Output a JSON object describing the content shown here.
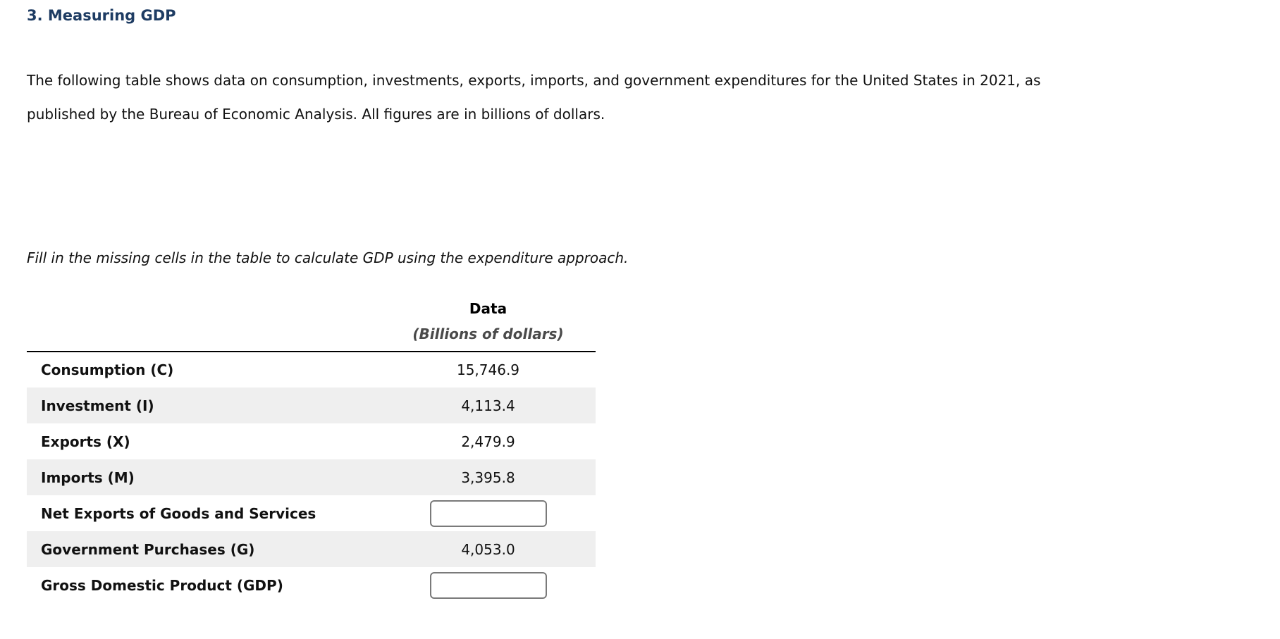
{
  "page": {
    "title": "3. Measuring GDP",
    "intro": "The following table shows data on consumption, investments, exports, imports, and government expenditures for the United States in 2021, as published by the Bureau of Economic Analysis. All figures are in billions of dollars.",
    "instruction": "Fill in the missing cells in the table to calculate GDP using the expenditure approach."
  },
  "table": {
    "header": {
      "line1": "Data",
      "line2": "(Billions of dollars)"
    },
    "rows": [
      {
        "label": "Consumption (C)",
        "value": "15,746.9",
        "input": false
      },
      {
        "label": "Investment (I)",
        "value": "4,113.4",
        "input": false
      },
      {
        "label": "Exports (X)",
        "value": "2,479.9",
        "input": false
      },
      {
        "label": "Imports (M)",
        "value": "3,395.8",
        "input": false
      },
      {
        "label": "Net Exports of Goods and Services",
        "value": "",
        "input": true,
        "input_name": "net-exports-input"
      },
      {
        "label": "Government Purchases (G)",
        "value": "4,053.0",
        "input": false
      },
      {
        "label": "Gross Domestic Product (GDP)",
        "value": "",
        "input": true,
        "input_name": "gdp-input"
      }
    ]
  },
  "colors": {
    "title": "#1e3c63",
    "body_text": "#111111",
    "header_subtitle": "#4a4a4a",
    "row_stripe": "#efefef",
    "header_rule": "#000000",
    "input_border": "#7a7a7a"
  }
}
